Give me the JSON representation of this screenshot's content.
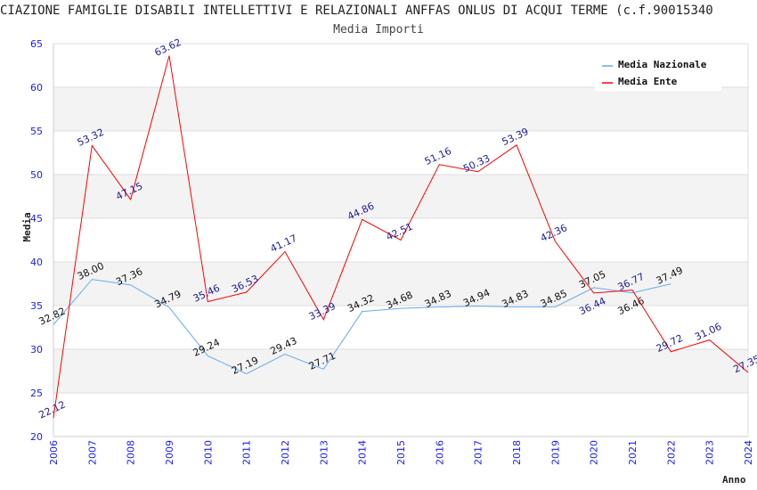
{
  "chart_data": {
    "type": "line",
    "title": "CIAZIONE FAMIGLIE DISABILI INTELLETTIVI E RELAZIONALI ANFFAS ONLUS DI ACQUI TERME (c.f.90015340",
    "subtitle": "Media Importi",
    "xlabel": "Anno",
    "ylabel": "Media",
    "ylim": [
      20,
      65
    ],
    "yticks": [
      20,
      25,
      30,
      35,
      40,
      45,
      50,
      55,
      60,
      65
    ],
    "x": [
      2006,
      2007,
      2008,
      2009,
      2010,
      2011,
      2012,
      2013,
      2014,
      2015,
      2016,
      2017,
      2018,
      2019,
      2020,
      2021,
      2022,
      2023,
      2024
    ],
    "legend_position": "top-right",
    "grid": true,
    "series": [
      {
        "name": "Media Nazionale",
        "color": "#66aaee",
        "label_color": "#111111",
        "values": [
          32.82,
          38.0,
          37.36,
          34.79,
          29.24,
          27.19,
          29.43,
          27.71,
          34.32,
          34.68,
          34.83,
          34.94,
          34.83,
          34.85,
          37.05,
          36.46,
          37.49,
          null,
          null
        ]
      },
      {
        "name": "Media Ente",
        "color": "#ff0000",
        "label_color": "#1a1a99",
        "values": [
          22.12,
          53.32,
          47.15,
          63.62,
          35.46,
          36.53,
          41.17,
          33.39,
          44.86,
          42.51,
          51.16,
          50.33,
          53.39,
          42.36,
          36.44,
          36.77,
          29.72,
          31.06,
          27.35
        ]
      }
    ]
  }
}
